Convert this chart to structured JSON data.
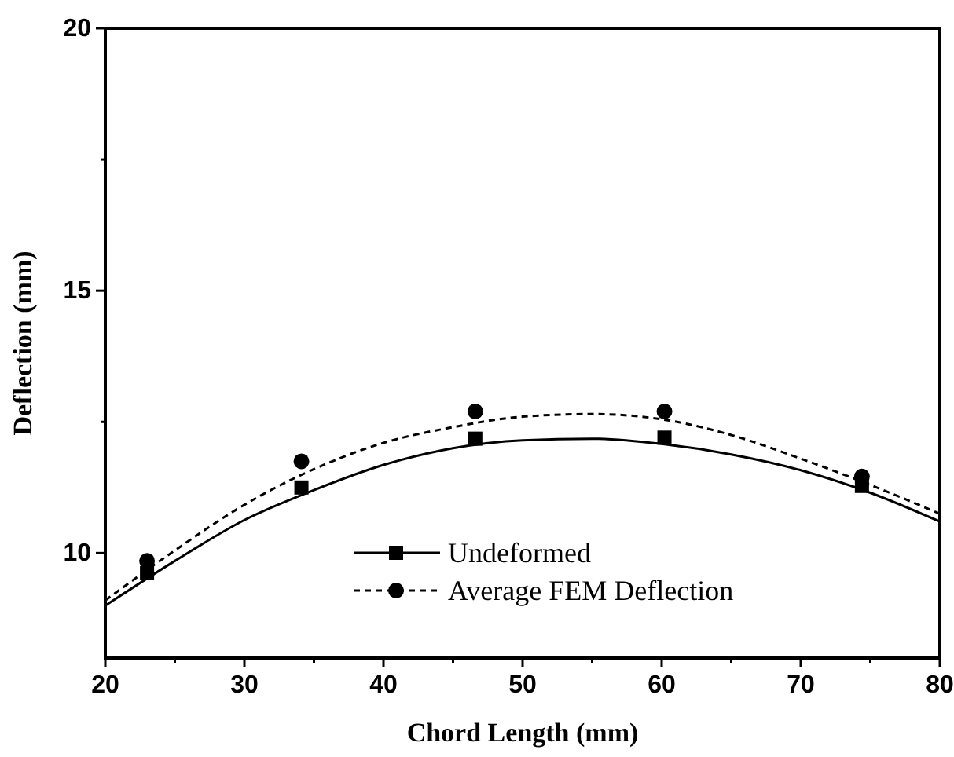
{
  "chart_data": {
    "type": "line",
    "xlabel": "Chord Length (mm)",
    "ylabel": "Deflection (mm)",
    "xlim": [
      20,
      80
    ],
    "ylim": [
      8,
      20
    ],
    "xticks": [
      20,
      {
        "value": 25,
        "label": null
      },
      30,
      {
        "value": 35,
        "label": null
      },
      40,
      {
        "value": 45,
        "label": null
      },
      50,
      {
        "value": 55,
        "label": null
      },
      60,
      {
        "value": 65,
        "label": null
      },
      70,
      {
        "value": 75,
        "label": null
      },
      80
    ],
    "yticks": [
      10,
      {
        "value": 12.5,
        "label": null
      },
      15,
      {
        "value": 17.5,
        "label": null
      },
      20
    ],
    "grid": false,
    "legend": "bottom",
    "series": [
      {
        "color": "#000000",
        "line_style": "solid",
        "marker": "none",
        "x": [
          20,
          25,
          30,
          35,
          40,
          45,
          50,
          55,
          60,
          65,
          70,
          75,
          80
        ],
        "values": [
          9.0,
          9.85,
          10.63,
          11.2,
          11.68,
          12.0,
          12.15,
          12.18,
          12.08,
          11.88,
          11.58,
          11.15,
          10.6
        ]
      },
      {
        "color": "#000000",
        "line_style": "dashed",
        "marker": "none",
        "x": [
          20,
          25,
          30,
          35,
          40,
          45,
          50,
          55,
          60,
          65,
          70,
          75,
          80
        ],
        "values": [
          9.1,
          10.05,
          10.92,
          11.6,
          12.1,
          12.4,
          12.6,
          12.65,
          12.55,
          12.25,
          11.8,
          11.3,
          10.75
        ]
      },
      {
        "type": "scatter",
        "name": "Undeformed",
        "color": "#000000",
        "marker": "square",
        "line_style": "solid",
        "x": [
          23,
          34.1,
          46.6,
          60.2,
          74.4
        ],
        "values": [
          9.62,
          11.25,
          12.18,
          12.2,
          11.28
        ]
      },
      {
        "type": "scatter",
        "name": "Average FEM Deflection",
        "color": "#000000",
        "marker": "circle",
        "line_style": "dashed",
        "x": [
          23,
          34.1,
          46.6,
          60.2,
          74.4
        ],
        "values": [
          9.85,
          11.75,
          12.7,
          12.7,
          11.46
        ]
      }
    ]
  }
}
